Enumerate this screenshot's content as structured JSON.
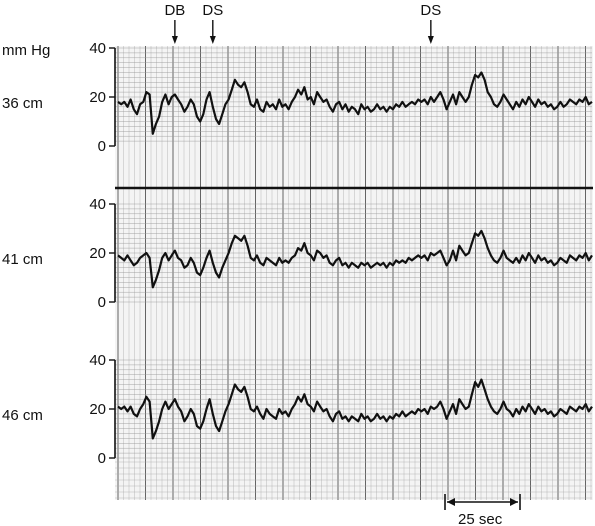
{
  "chart_data": {
    "type": "line",
    "ylabel_unit": "mm Hg",
    "yticks": [
      "0",
      "20",
      "40"
    ],
    "ylim": [
      0,
      40
    ],
    "x_scale_bar_label": "25 sec",
    "event_markers": [
      {
        "label": "DB",
        "x": 0.12
      },
      {
        "label": "DS",
        "x": 0.2
      },
      {
        "label": "DS",
        "x": 0.66
      }
    ],
    "panels": [
      {
        "name": "36 cm",
        "values": [
          18,
          17,
          18,
          16,
          19,
          15,
          13,
          17,
          18,
          22,
          21,
          5,
          9,
          12,
          18,
          21,
          17,
          20,
          21,
          19,
          17,
          14,
          16,
          19,
          17,
          12,
          10,
          13,
          19,
          22,
          16,
          11,
          9,
          13,
          17,
          19,
          23,
          27,
          25,
          24,
          26,
          22,
          17,
          16,
          19,
          15,
          14,
          18,
          16,
          17,
          15,
          19,
          16,
          17,
          15,
          18,
          20,
          23,
          21,
          24,
          19,
          20,
          17,
          22,
          20,
          18,
          19,
          16,
          14,
          17,
          18,
          15,
          17,
          14,
          16,
          15,
          13,
          17,
          15,
          16,
          14,
          15,
          17,
          15,
          16,
          14,
          16,
          15,
          17,
          16,
          18,
          16,
          17,
          18,
          17,
          19,
          18,
          19,
          17,
          20,
          18,
          20,
          22,
          19,
          15,
          18,
          21,
          17,
          22,
          20,
          18,
          20,
          25,
          29,
          28,
          30,
          27,
          22,
          20,
          17,
          16,
          18,
          21,
          19,
          17,
          15,
          18,
          16,
          19,
          17,
          20,
          18,
          16,
          19,
          17,
          18,
          16,
          17,
          15,
          16,
          18,
          16,
          17,
          19,
          18,
          17,
          19,
          18,
          20,
          17,
          18
        ],
        "annotations": []
      },
      {
        "name": "41 cm",
        "values": [
          19,
          18,
          17,
          19,
          17,
          15,
          16,
          18,
          19,
          20,
          18,
          6,
          9,
          13,
          18,
          20,
          17,
          19,
          21,
          18,
          17,
          14,
          15,
          18,
          16,
          12,
          11,
          14,
          18,
          21,
          16,
          12,
          10,
          14,
          17,
          20,
          24,
          27,
          26,
          25,
          27,
          23,
          18,
          17,
          19,
          16,
          15,
          18,
          17,
          16,
          15,
          18,
          16,
          17,
          16,
          18,
          19,
          22,
          21,
          24,
          20,
          19,
          17,
          21,
          20,
          18,
          19,
          16,
          15,
          17,
          18,
          15,
          16,
          14,
          16,
          15,
          14,
          16,
          15,
          16,
          14,
          15,
          16,
          15,
          16,
          14,
          16,
          15,
          17,
          16,
          17,
          16,
          18,
          17,
          18,
          19,
          18,
          19,
          17,
          20,
          19,
          20,
          21,
          18,
          15,
          17,
          21,
          17,
          23,
          21,
          19,
          20,
          24,
          28,
          27,
          29,
          26,
          22,
          19,
          17,
          16,
          18,
          21,
          18,
          17,
          16,
          18,
          16,
          19,
          17,
          20,
          18,
          16,
          19,
          17,
          18,
          16,
          17,
          15,
          16,
          18,
          17,
          16,
          19,
          18,
          17,
          19,
          18,
          20,
          17,
          19
        ],
        "annotations": []
      },
      {
        "name": "46 cm",
        "values": [
          21,
          20,
          21,
          19,
          21,
          18,
          17,
          20,
          22,
          25,
          23,
          8,
          11,
          15,
          20,
          23,
          20,
          22,
          24,
          21,
          19,
          15,
          17,
          20,
          18,
          13,
          12,
          15,
          20,
          24,
          18,
          13,
          11,
          15,
          19,
          22,
          26,
          30,
          28,
          27,
          29,
          25,
          20,
          19,
          21,
          18,
          16,
          20,
          18,
          17,
          16,
          20,
          18,
          19,
          17,
          20,
          22,
          25,
          23,
          26,
          22,
          21,
          19,
          23,
          21,
          19,
          20,
          17,
          15,
          18,
          19,
          16,
          17,
          15,
          17,
          16,
          15,
          18,
          16,
          17,
          15,
          16,
          18,
          16,
          17,
          15,
          17,
          16,
          18,
          17,
          19,
          17,
          18,
          19,
          18,
          20,
          19,
          20,
          18,
          21,
          20,
          21,
          23,
          20,
          16,
          19,
          22,
          18,
          24,
          22,
          20,
          21,
          26,
          31,
          29,
          32,
          28,
          24,
          21,
          19,
          18,
          20,
          23,
          20,
          19,
          17,
          20,
          18,
          21,
          19,
          22,
          20,
          18,
          21,
          19,
          20,
          18,
          19,
          17,
          18,
          20,
          19,
          18,
          21,
          20,
          19,
          21,
          20,
          22,
          19,
          21
        ],
        "annotations": []
      }
    ]
  }
}
